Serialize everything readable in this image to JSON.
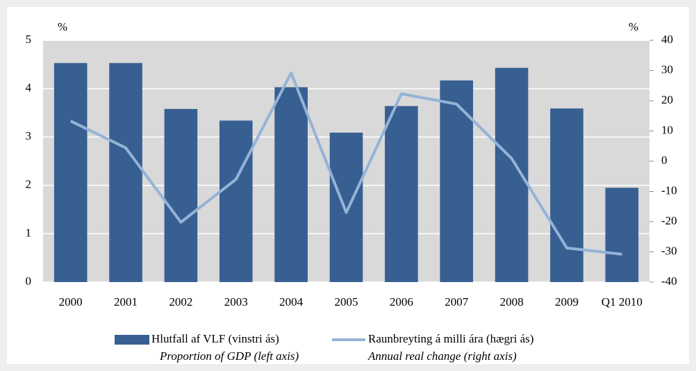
{
  "chart_data": {
    "type": "bar_line",
    "categories": [
      "2000",
      "2001",
      "2002",
      "2003",
      "2004",
      "2005",
      "2006",
      "2007",
      "2008",
      "2009",
      "Q1 2010"
    ],
    "series": [
      {
        "name": "Hlutfall af VLF (vinstri ás)",
        "subtitle": "Proportion of GDP (left axis)",
        "type": "bar",
        "color": "#375f92",
        "values": [
          4.53,
          4.53,
          3.58,
          3.34,
          4.03,
          3.09,
          3.64,
          4.17,
          4.43,
          3.59,
          1.95
        ]
      },
      {
        "name": "Raunbreyting á milli ára (hægri ás)",
        "subtitle": "Annual real change (right axis)",
        "type": "line",
        "color": "#95b3d7",
        "axis": "y2",
        "values": [
          13.3,
          4.4,
          -20.2,
          -6,
          29.2,
          -17,
          22.3,
          18.9,
          0.9,
          -28.7,
          -30.8
        ]
      }
    ],
    "ylabel": "%",
    "y2label": "%",
    "ylim": [
      0,
      5
    ],
    "yticks": [
      0,
      1,
      2,
      3,
      4,
      5
    ],
    "y2lim": [
      -40,
      40
    ],
    "y2ticks": [
      -40,
      -30,
      -20,
      -10,
      0,
      10,
      20,
      30,
      40
    ],
    "grid": true
  }
}
